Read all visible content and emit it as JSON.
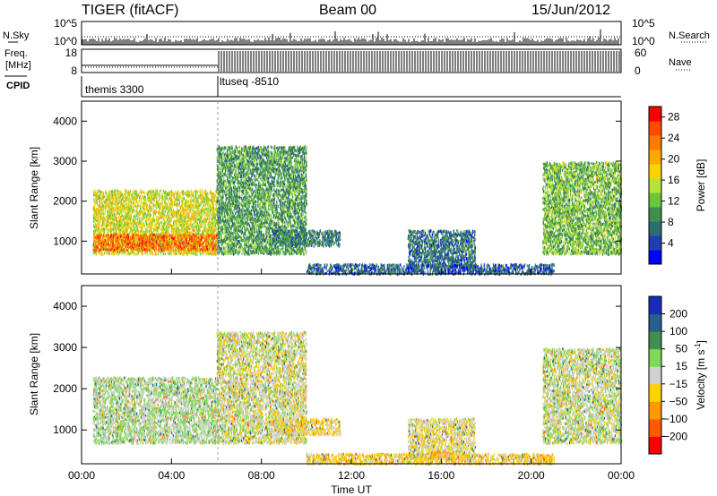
{
  "header": {
    "station": "TIGER (fitACF)",
    "beam": "Beam 00",
    "date": "15/Jun/2012"
  },
  "top_panels": {
    "nsky_label": "N.Sky",
    "nsearch_label": "N.Search",
    "freq_label_1": "Freq.",
    "freq_label_2": "[MHz]",
    "nave_label": "Nave",
    "cpid_label": "CPID",
    "nsky_ticks": [
      "10^5",
      "10^0"
    ],
    "nsearch_ticks": [
      "10^5",
      "10^0"
    ],
    "freq_ticks": [
      "18",
      "8"
    ],
    "nave_ticks": [
      "60",
      "0"
    ],
    "cpid_segments": [
      {
        "name": "themis 3300",
        "start_hour": 0,
        "end_hour": 6
      },
      {
        "name": "ltuseq -8510",
        "start_hour": 6,
        "end_hour": 24
      }
    ],
    "freq_mhz": [
      {
        "start_hour": 0,
        "end_hour": 6,
        "value": 10
      },
      {
        "start_hour": 6,
        "end_hour": 24,
        "value": 18
      }
    ],
    "nave_dotted_value": 8
  },
  "chart_data": [
    {
      "type": "heatmap",
      "title": "Power",
      "ylabel": "Slant Range [km]",
      "xlabel": "Time UT",
      "xlim": [
        0,
        24
      ],
      "ylim": [
        180,
        4500
      ],
      "x_ticks": [
        "00:00",
        "04:00",
        "08:00",
        "12:00",
        "16:00",
        "20:00",
        "00:00"
      ],
      "y_ticks": [
        1000,
        2000,
        3000,
        4000
      ],
      "colorbar": {
        "label": "Power [dB]",
        "ticks": [
          4,
          8,
          12,
          16,
          20,
          24,
          28
        ],
        "range": [
          0,
          30
        ],
        "colors": [
          "#0000ff",
          "#1f3fb0",
          "#2d6e6e",
          "#3f8f50",
          "#6cc63a",
          "#b6e23a",
          "#ffd200",
          "#ffaa00",
          "#ff7a00",
          "#ff4a00",
          "#ff0000"
        ]
      },
      "regions": [
        {
          "t0": 0.5,
          "t1": 6.0,
          "r0": 700,
          "r1": 2300,
          "level": 16
        },
        {
          "t0": 0.5,
          "t1": 6.0,
          "r0": 800,
          "r1": 1200,
          "level": 24
        },
        {
          "t0": 6.0,
          "t1": 10.0,
          "r0": 700,
          "r1": 3400,
          "level": 10
        },
        {
          "t0": 8.5,
          "t1": 11.5,
          "r0": 900,
          "r1": 1300,
          "level": 8
        },
        {
          "t0": 14.5,
          "t1": 17.5,
          "r0": 350,
          "r1": 1300,
          "level": 7
        },
        {
          "t0": 10.0,
          "t1": 21.0,
          "r0": 200,
          "r1": 450,
          "level": 6
        },
        {
          "t0": 20.5,
          "t1": 24.0,
          "r0": 700,
          "r1": 3000,
          "level": 12
        }
      ]
    },
    {
      "type": "heatmap",
      "title": "Velocity",
      "ylabel": "Slant Range [km]",
      "xlabel": "Time UT",
      "xlim": [
        0,
        24
      ],
      "ylim": [
        180,
        4500
      ],
      "x_ticks": [
        "00:00",
        "04:00",
        "08:00",
        "12:00",
        "16:00",
        "20:00",
        "00:00"
      ],
      "y_ticks": [
        1000,
        2000,
        3000,
        4000
      ],
      "colorbar": {
        "label": "Velocity [m s",
        "label_exp": "-1",
        "label_close": "]",
        "ticks": [
          200,
          100,
          50,
          15,
          -15,
          -50,
          -100,
          -200
        ],
        "colors": [
          "#1a2bb8",
          "#2a5e8f",
          "#3f8f50",
          "#7ed957",
          "#d0d0d0",
          "#ffd200",
          "#ff9900",
          "#ff5a00",
          "#ff0000"
        ]
      },
      "regions": [
        {
          "t0": 0.5,
          "t1": 6.0,
          "r0": 700,
          "r1": 2300,
          "level": 15
        },
        {
          "t0": 6.0,
          "t1": 10.0,
          "r0": 700,
          "r1": 3400,
          "level": 0
        },
        {
          "t0": 8.5,
          "t1": 11.5,
          "r0": 900,
          "r1": 1300,
          "level": -20
        },
        {
          "t0": 14.5,
          "t1": 17.5,
          "r0": 350,
          "r1": 1300,
          "level": -10
        },
        {
          "t0": 15.5,
          "t1": 16.5,
          "r0": 380,
          "r1": 520,
          "level": -60
        },
        {
          "t0": 10.0,
          "t1": 21.0,
          "r0": 200,
          "r1": 450,
          "level": -30
        },
        {
          "t0": 20.5,
          "t1": 24.0,
          "r0": 700,
          "r1": 3000,
          "level": 5
        }
      ]
    }
  ]
}
